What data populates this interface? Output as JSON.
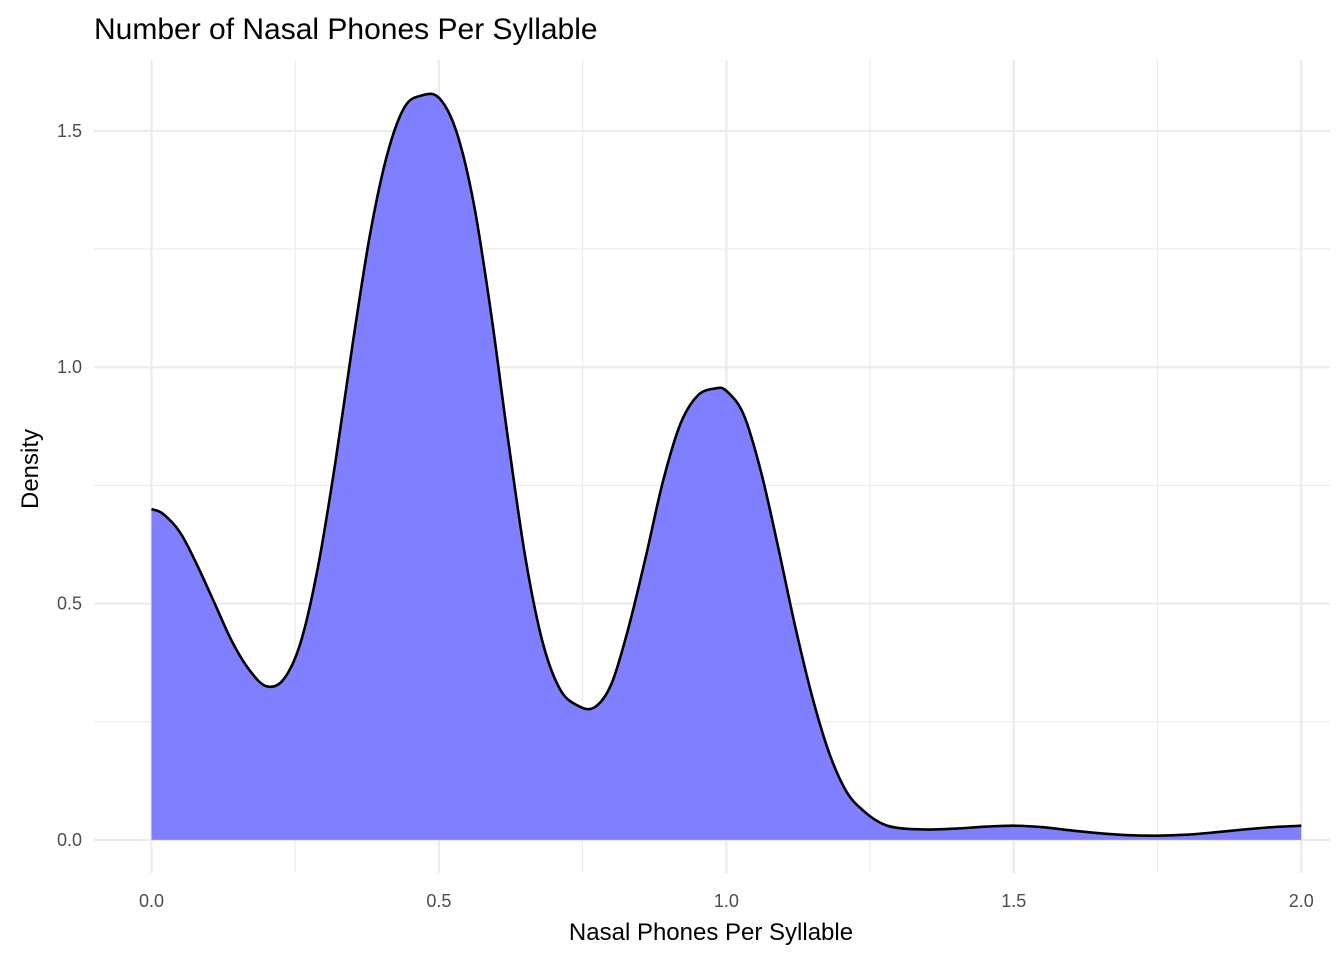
{
  "chart_data": {
    "type": "area",
    "title": "Number of Nasal Phones Per Syllable",
    "xlabel": "Nasal Phones Per Syllable",
    "ylabel": "Density",
    "xlim": [
      -0.1,
      2.05
    ],
    "ylim": [
      -0.07,
      1.65
    ],
    "x_ticks": [
      0.0,
      0.5,
      1.0,
      1.5,
      2.0
    ],
    "x_tick_labels": [
      "0.0",
      "0.5",
      "1.0",
      "1.5",
      "2.0"
    ],
    "x_minor_ticks": [
      0.25,
      0.75,
      1.25,
      1.75
    ],
    "y_ticks": [
      0.0,
      0.5,
      1.0,
      1.5
    ],
    "y_tick_labels": [
      "0.0",
      "0.5",
      "1.0",
      "1.5"
    ],
    "y_minor_ticks": [
      0.25,
      0.75,
      1.25
    ],
    "grid": true,
    "legend": "none",
    "fill_color": "#8080ff",
    "line_color": "#000000",
    "x": [
      0.0,
      0.02,
      0.05,
      0.08,
      0.11,
      0.14,
      0.17,
      0.2,
      0.23,
      0.26,
      0.29,
      0.32,
      0.35,
      0.38,
      0.41,
      0.44,
      0.47,
      0.5,
      0.53,
      0.56,
      0.59,
      0.62,
      0.65,
      0.68,
      0.71,
      0.74,
      0.77,
      0.8,
      0.83,
      0.86,
      0.89,
      0.92,
      0.95,
      0.98,
      1.0,
      1.03,
      1.06,
      1.09,
      1.12,
      1.15,
      1.18,
      1.21,
      1.24,
      1.27,
      1.3,
      1.35,
      1.4,
      1.45,
      1.5,
      1.55,
      1.6,
      1.65,
      1.7,
      1.75,
      1.8,
      1.85,
      1.9,
      1.95,
      2.0
    ],
    "y": [
      0.7,
      0.69,
      0.65,
      0.58,
      0.5,
      0.42,
      0.36,
      0.325,
      0.34,
      0.42,
      0.58,
      0.8,
      1.05,
      1.28,
      1.45,
      1.55,
      1.575,
      1.57,
      1.5,
      1.35,
      1.12,
      0.85,
      0.6,
      0.42,
      0.32,
      0.285,
      0.28,
      0.33,
      0.45,
      0.6,
      0.76,
      0.88,
      0.94,
      0.955,
      0.95,
      0.9,
      0.78,
      0.62,
      0.45,
      0.3,
      0.18,
      0.1,
      0.06,
      0.035,
      0.025,
      0.022,
      0.024,
      0.028,
      0.03,
      0.027,
      0.02,
      0.014,
      0.01,
      0.009,
      0.011,
      0.016,
      0.022,
      0.027,
      0.03
    ]
  }
}
